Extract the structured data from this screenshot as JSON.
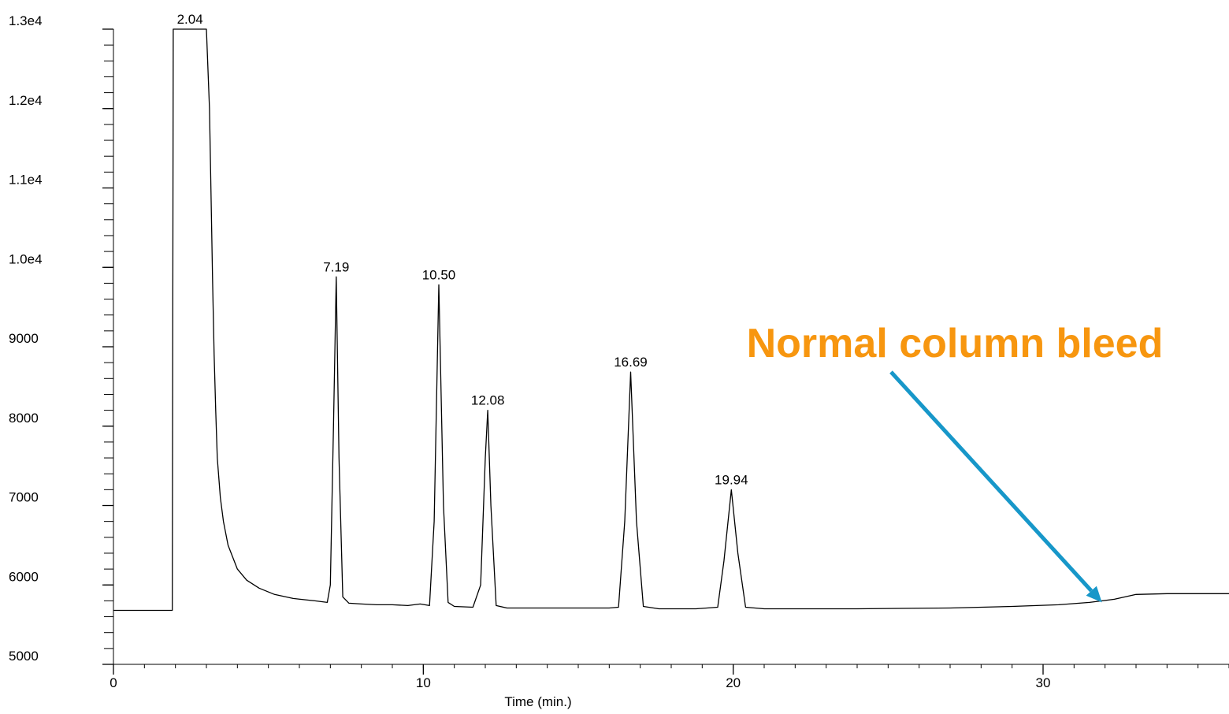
{
  "chart_data": {
    "type": "line",
    "title": "",
    "xlabel": "Time (min.)",
    "ylabel": "",
    "xlim": [
      0,
      36
    ],
    "ylim": [
      5000,
      13000
    ],
    "x_ticks": [
      {
        "value": 0,
        "label": "0"
      },
      {
        "value": 10,
        "label": "10"
      },
      {
        "value": 20,
        "label": "20"
      },
      {
        "value": 30,
        "label": "30"
      }
    ],
    "y_ticks": [
      {
        "value": 5000,
        "label": "5000"
      },
      {
        "value": 6000,
        "label": "6000"
      },
      {
        "value": 7000,
        "label": "7000"
      },
      {
        "value": 8000,
        "label": "8000"
      },
      {
        "value": 9000,
        "label": "9000"
      },
      {
        "value": 10000,
        "label": "1.0e4"
      },
      {
        "value": 11000,
        "label": "1.1e4"
      },
      {
        "value": 12000,
        "label": "1.2e4"
      },
      {
        "value": 13000,
        "label": "1.3e4"
      }
    ],
    "peaks": [
      {
        "time": 2.04,
        "label": "2.04",
        "height": 13000
      },
      {
        "time": 7.19,
        "label": "7.19",
        "height": 9880
      },
      {
        "time": 10.5,
        "label": "10.50",
        "height": 9780
      },
      {
        "time": 12.08,
        "label": "12.08",
        "height": 8200
      },
      {
        "time": 16.69,
        "label": "16.69",
        "height": 8680
      },
      {
        "time": 19.94,
        "label": "19.94",
        "height": 7200
      }
    ],
    "series": [
      {
        "x": [
          0,
          1.9,
          1.93,
          3.0,
          3.1,
          3.15,
          3.2,
          3.25,
          3.3,
          3.35,
          3.45,
          3.55,
          3.7,
          3.85,
          4.0,
          4.3,
          4.7,
          5.2,
          5.8,
          6.5,
          6.9,
          7.0,
          7.1,
          7.19,
          7.28,
          7.4,
          7.6,
          8.0,
          8.5,
          9.0,
          9.5,
          9.9,
          10.2,
          10.35,
          10.5,
          10.65,
          10.8,
          11.0,
          11.6,
          11.85,
          12.0,
          12.08,
          12.18,
          12.35,
          12.7,
          14.0,
          16.0,
          16.3,
          16.5,
          16.69,
          16.88,
          17.1,
          17.6,
          18.8,
          19.5,
          19.7,
          19.94,
          20.15,
          20.4,
          21.0,
          24.0,
          27.0,
          29.0,
          30.5,
          31.5,
          32.3,
          33.0,
          34.0,
          35.0,
          36.0
        ],
        "y": [
          5680,
          5680,
          13000,
          13000,
          12000,
          10900,
          9800,
          8900,
          8200,
          7600,
          7100,
          6800,
          6500,
          6350,
          6200,
          6060,
          5960,
          5880,
          5830,
          5800,
          5780,
          6000,
          8000,
          9880,
          7600,
          5850,
          5770,
          5760,
          5750,
          5750,
          5740,
          5760,
          5740,
          6800,
          9780,
          7000,
          5780,
          5730,
          5720,
          6000,
          7600,
          8200,
          7000,
          5740,
          5710,
          5710,
          5710,
          5720,
          6800,
          8680,
          6800,
          5730,
          5700,
          5700,
          5720,
          6300,
          7200,
          6400,
          5720,
          5700,
          5700,
          5710,
          5730,
          5750,
          5780,
          5820,
          5880,
          5890,
          5890,
          5890
        ]
      }
    ],
    "annotation": {
      "text": "Normal column bleed",
      "color": "#F7960F",
      "arrow_color": "#1797C9",
      "arrow_target": {
        "x": 31.9,
        "y": 5780
      }
    },
    "grid": false,
    "line_color": "#000000"
  }
}
